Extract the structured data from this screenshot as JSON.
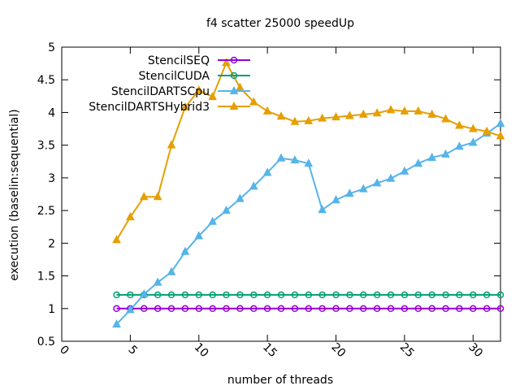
{
  "chart_data": {
    "type": "line",
    "title": "f4 scatter 25000 speedUp",
    "xlabel": "number of threads",
    "ylabel": "execution (baselin:sequential)",
    "xlim": [
      0,
      32
    ],
    "ylim": [
      0.5,
      5
    ],
    "xticks": [
      0,
      5,
      10,
      15,
      20,
      25,
      30
    ],
    "yticks": [
      0.5,
      1,
      1.5,
      2,
      2.5,
      3,
      3.5,
      4,
      4.5,
      5
    ],
    "grid": false,
    "legend_position": "top-left",
    "series": [
      {
        "name": "StencilSEQ",
        "color": "#9400d3",
        "marker": "circle",
        "x": [
          4,
          5,
          6,
          7,
          8,
          9,
          10,
          11,
          12,
          13,
          14,
          15,
          16,
          17,
          18,
          19,
          20,
          21,
          22,
          23,
          24,
          25,
          26,
          27,
          28,
          29,
          30,
          31,
          32
        ],
        "y": [
          1,
          1,
          1,
          1,
          1,
          1,
          1,
          1,
          1,
          1,
          1,
          1,
          1,
          1,
          1,
          1,
          1,
          1,
          1,
          1,
          1,
          1,
          1,
          1,
          1,
          1,
          1,
          1,
          1
        ]
      },
      {
        "name": "StencilCUDA",
        "color": "#009e73",
        "marker": "circle",
        "x": [
          4,
          5,
          6,
          7,
          8,
          9,
          10,
          11,
          12,
          13,
          14,
          15,
          16,
          17,
          18,
          19,
          20,
          21,
          22,
          23,
          24,
          25,
          26,
          27,
          28,
          29,
          30,
          31,
          32
        ],
        "y": [
          1.21,
          1.21,
          1.21,
          1.21,
          1.21,
          1.21,
          1.21,
          1.21,
          1.21,
          1.21,
          1.21,
          1.21,
          1.21,
          1.21,
          1.21,
          1.21,
          1.21,
          1.21,
          1.21,
          1.21,
          1.21,
          1.21,
          1.21,
          1.21,
          1.21,
          1.21,
          1.21,
          1.21,
          1.21
        ]
      },
      {
        "name": "StencilDARTSCpu",
        "color": "#56b4e9",
        "marker": "triangle",
        "x": [
          4,
          5,
          6,
          7,
          8,
          9,
          10,
          11,
          12,
          13,
          14,
          15,
          16,
          17,
          18,
          19,
          20,
          21,
          22,
          23,
          24,
          25,
          26,
          27,
          28,
          29,
          30,
          31,
          32
        ],
        "y": [
          0.76,
          0.98,
          1.22,
          1.4,
          1.56,
          1.87,
          2.11,
          2.33,
          2.5,
          2.68,
          2.87,
          3.08,
          3.3,
          3.27,
          3.22,
          2.51,
          2.66,
          2.76,
          2.83,
          2.92,
          2.99,
          3.1,
          3.22,
          3.31,
          3.36,
          3.48,
          3.54,
          3.68,
          3.83
        ]
      },
      {
        "name": "StencilDARTSHybrid3",
        "color": "#e69f00",
        "marker": "triangle",
        "x": [
          4,
          5,
          6,
          7,
          8,
          9,
          10,
          11,
          12,
          13,
          14,
          15,
          16,
          17,
          18,
          19,
          20,
          21,
          22,
          23,
          24,
          25,
          26,
          27,
          28,
          29,
          30,
          31,
          32
        ],
        "y": [
          2.05,
          2.4,
          2.71,
          2.71,
          3.5,
          4.08,
          4.34,
          4.24,
          4.76,
          4.38,
          4.16,
          4.02,
          3.94,
          3.86,
          3.87,
          3.91,
          3.93,
          3.95,
          3.97,
          3.99,
          4.04,
          4.02,
          4.02,
          3.97,
          3.9,
          3.8,
          3.75,
          3.71,
          3.64
        ]
      }
    ]
  }
}
